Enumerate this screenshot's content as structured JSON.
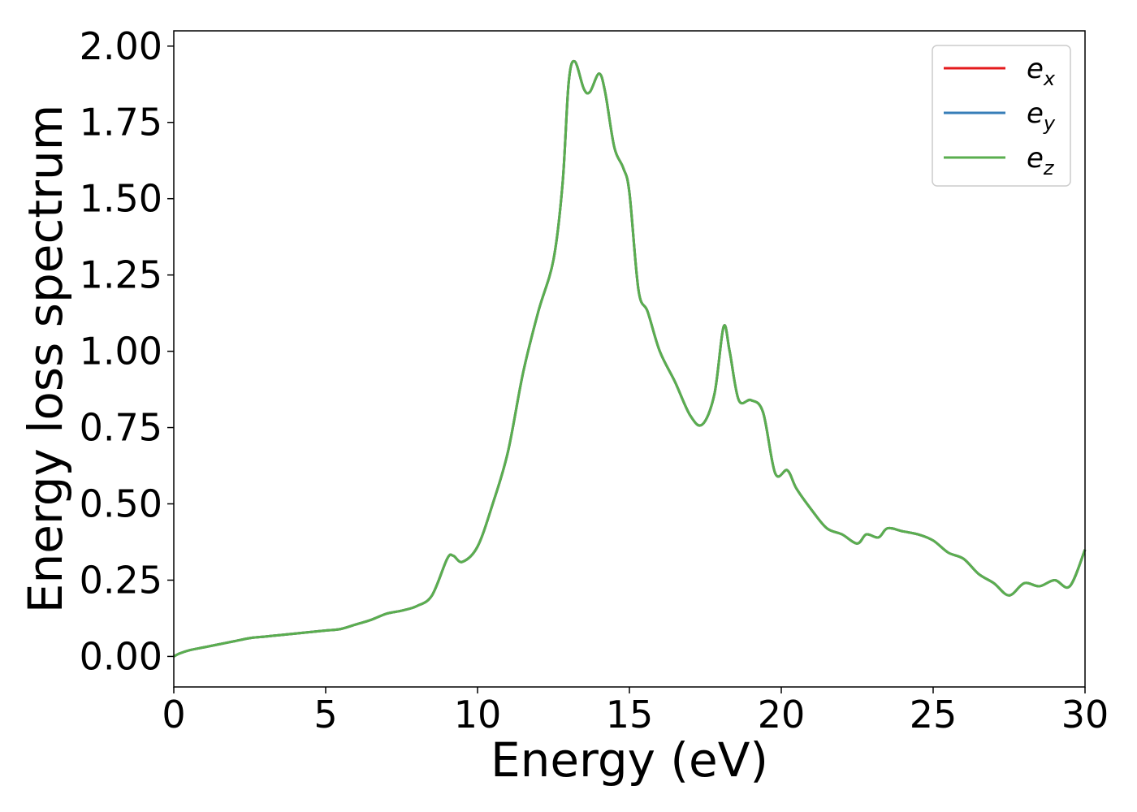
{
  "chart_data": {
    "type": "line",
    "title": "",
    "xlabel": "Energy (eV)",
    "ylabel": "Energy loss spectrum",
    "xlim": [
      0,
      30
    ],
    "ylim": [
      -0.1,
      2.05
    ],
    "grid": false,
    "legend_position": "top-right",
    "x_ticks": [
      0,
      5,
      10,
      15,
      20,
      25,
      30
    ],
    "x_tick_labels": [
      "0",
      "5",
      "10",
      "15",
      "20",
      "25",
      "30"
    ],
    "y_ticks": [
      0,
      0.25,
      0.5,
      0.75,
      1.0,
      1.25,
      1.5,
      1.75,
      2.0
    ],
    "y_tick_labels": [
      "0.00",
      "0.25",
      "0.50",
      "0.75",
      "1.00",
      "1.25",
      "1.50",
      "1.75",
      "2.00"
    ],
    "x": [
      0,
      0.2,
      0.5,
      1.0,
      1.5,
      2.0,
      2.5,
      3.0,
      3.5,
      4.0,
      4.5,
      5.0,
      5.5,
      6.0,
      6.5,
      7.0,
      7.5,
      8.0,
      8.5,
      9.0,
      9.2,
      9.5,
      10.0,
      10.5,
      11.0,
      11.5,
      12.0,
      12.5,
      12.8,
      13.0,
      13.2,
      13.5,
      13.7,
      14.0,
      14.2,
      14.5,
      14.8,
      15.0,
      15.3,
      15.6,
      16.0,
      16.5,
      17.0,
      17.4,
      17.8,
      18.1,
      18.3,
      18.6,
      19.0,
      19.4,
      19.8,
      20.2,
      20.5,
      21.0,
      21.5,
      22.0,
      22.5,
      22.8,
      23.2,
      23.5,
      24.0,
      24.5,
      25.0,
      25.5,
      26.0,
      26.5,
      27.0,
      27.5,
      28.0,
      28.5,
      29.0,
      29.5,
      30.0
    ],
    "series": [
      {
        "name": "e_x",
        "label_base": "e",
        "label_sub": "x",
        "color": "#e41a1c",
        "values": [
          0.0,
          0.01,
          0.02,
          0.03,
          0.04,
          0.05,
          0.06,
          0.065,
          0.07,
          0.075,
          0.08,
          0.085,
          0.09,
          0.105,
          0.12,
          0.14,
          0.15,
          0.165,
          0.2,
          0.32,
          0.33,
          0.31,
          0.36,
          0.5,
          0.67,
          0.93,
          1.13,
          1.3,
          1.55,
          1.88,
          1.95,
          1.86,
          1.85,
          1.91,
          1.85,
          1.67,
          1.6,
          1.52,
          1.2,
          1.13,
          1.0,
          0.9,
          0.79,
          0.76,
          0.86,
          1.08,
          1.0,
          0.84,
          0.84,
          0.8,
          0.6,
          0.61,
          0.55,
          0.48,
          0.42,
          0.4,
          0.37,
          0.4,
          0.39,
          0.42,
          0.41,
          0.4,
          0.38,
          0.34,
          0.32,
          0.27,
          0.24,
          0.2,
          0.24,
          0.23,
          0.25,
          0.23,
          0.35
        ]
      },
      {
        "name": "e_y",
        "label_base": "e",
        "label_sub": "y",
        "color": "#377eb8",
        "values": [
          0.0,
          0.01,
          0.02,
          0.03,
          0.04,
          0.05,
          0.06,
          0.065,
          0.07,
          0.075,
          0.08,
          0.085,
          0.09,
          0.105,
          0.12,
          0.14,
          0.15,
          0.165,
          0.2,
          0.32,
          0.33,
          0.31,
          0.36,
          0.5,
          0.67,
          0.93,
          1.13,
          1.3,
          1.55,
          1.88,
          1.95,
          1.86,
          1.85,
          1.91,
          1.85,
          1.67,
          1.6,
          1.52,
          1.2,
          1.13,
          1.0,
          0.9,
          0.79,
          0.76,
          0.86,
          1.08,
          1.0,
          0.84,
          0.84,
          0.8,
          0.6,
          0.61,
          0.55,
          0.48,
          0.42,
          0.4,
          0.37,
          0.4,
          0.39,
          0.42,
          0.41,
          0.4,
          0.38,
          0.34,
          0.32,
          0.27,
          0.24,
          0.2,
          0.24,
          0.23,
          0.25,
          0.23,
          0.35
        ]
      },
      {
        "name": "e_z",
        "label_base": "e",
        "label_sub": "z",
        "color": "#5aae4f",
        "values": [
          0.0,
          0.01,
          0.02,
          0.03,
          0.04,
          0.05,
          0.06,
          0.065,
          0.07,
          0.075,
          0.08,
          0.085,
          0.09,
          0.105,
          0.12,
          0.14,
          0.15,
          0.165,
          0.2,
          0.32,
          0.33,
          0.31,
          0.36,
          0.5,
          0.67,
          0.93,
          1.13,
          1.3,
          1.55,
          1.88,
          1.95,
          1.86,
          1.85,
          1.91,
          1.85,
          1.67,
          1.6,
          1.52,
          1.2,
          1.13,
          1.0,
          0.9,
          0.79,
          0.76,
          0.86,
          1.08,
          1.0,
          0.84,
          0.84,
          0.8,
          0.6,
          0.61,
          0.55,
          0.48,
          0.42,
          0.4,
          0.37,
          0.4,
          0.39,
          0.42,
          0.41,
          0.4,
          0.38,
          0.34,
          0.32,
          0.27,
          0.24,
          0.2,
          0.24,
          0.23,
          0.25,
          0.23,
          0.35
        ]
      }
    ]
  }
}
